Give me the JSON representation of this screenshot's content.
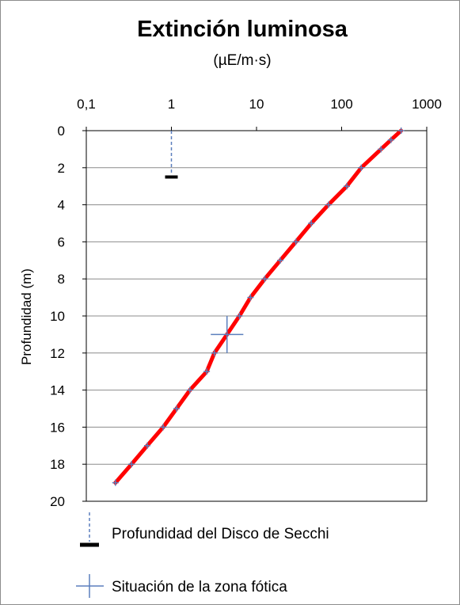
{
  "chart_data": {
    "type": "line",
    "title": "Extinción luminosa",
    "subtitle": "(µE/m·s)",
    "xlabel": "",
    "ylabel": "Profundidad (m)",
    "x_scale": "log",
    "x_axis_position": "top",
    "y_axis_inverted": true,
    "xlim": [
      0.1,
      1000
    ],
    "ylim": [
      0,
      20
    ],
    "x_ticks": [
      "0,1",
      "1",
      "10",
      "100",
      "1000"
    ],
    "y_ticks": [
      "0",
      "2",
      "4",
      "6",
      "8",
      "10",
      "12",
      "14",
      "16",
      "18",
      "20"
    ],
    "grid": "horizontal",
    "series": [
      {
        "name": "",
        "color": "#ff0000",
        "marker_color": "#5b7fbd",
        "points": [
          {
            "x": 500,
            "y": 0
          },
          {
            "x": 380,
            "y": 0.5
          },
          {
            "x": 290,
            "y": 1
          },
          {
            "x": 170,
            "y": 2
          },
          {
            "x": 115,
            "y": 3
          },
          {
            "x": 70,
            "y": 4
          },
          {
            "x": 44,
            "y": 5
          },
          {
            "x": 29,
            "y": 6
          },
          {
            "x": 19,
            "y": 7
          },
          {
            "x": 12.5,
            "y": 8
          },
          {
            "x": 8.5,
            "y": 9
          },
          {
            "x": 6.3,
            "y": 10
          },
          {
            "x": 4.5,
            "y": 11
          },
          {
            "x": 3.2,
            "y": 12
          },
          {
            "x": 2.6,
            "y": 13
          },
          {
            "x": 1.65,
            "y": 14
          },
          {
            "x": 1.15,
            "y": 15
          },
          {
            "x": 0.8,
            "y": 16
          },
          {
            "x": 0.52,
            "y": 17
          },
          {
            "x": 0.34,
            "y": 18
          },
          {
            "x": 0.22,
            "y": 19
          }
        ]
      }
    ],
    "secchi": {
      "x": 1,
      "y_from": 0,
      "y_to": 2.5,
      "color": "#5b7fbd",
      "cap_color": "#000000"
    },
    "photic": {
      "x": 4.5,
      "y": 11,
      "x_from": 2.9,
      "x_to": 7.0,
      "y_from": 10,
      "y_to": 12,
      "color": "#5b7fbd"
    },
    "legend": {
      "placement": "bottom",
      "items": [
        {
          "label": "Profundidad del Disco de Secchi",
          "icon": "secchi-dashed-cap"
        },
        {
          "label": "Situación de la zona fótica",
          "icon": "blue-cross"
        }
      ]
    }
  }
}
